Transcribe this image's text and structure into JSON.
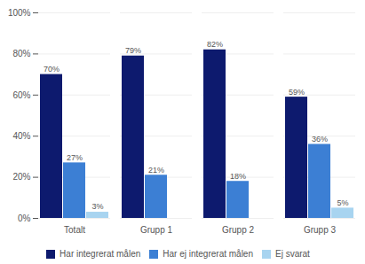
{
  "chart_data": {
    "type": "bar",
    "categories": [
      "Totalt",
      "Grupp 1",
      "Grupp 2",
      "Grupp 3"
    ],
    "series": [
      {
        "name": "Har integrerat målen",
        "color": "#0D1A6E",
        "values": [
          70,
          79,
          82,
          59
        ],
        "value_labels": [
          "70%",
          "79%",
          "82%",
          "59%"
        ]
      },
      {
        "name": "Har ej integrerat målen",
        "color": "#3C7FD4",
        "values": [
          27,
          21,
          18,
          36
        ],
        "value_labels": [
          "27%",
          "21%",
          "18%",
          "36%"
        ]
      },
      {
        "name": "Ej svarat",
        "color": "#A8D4F0",
        "values": [
          3,
          0,
          0,
          5
        ],
        "value_labels": [
          "3%",
          null,
          null,
          "5%"
        ]
      }
    ],
    "ylim": [
      0,
      100
    ],
    "yticks": [
      {
        "value": 0,
        "label": "0%"
      },
      {
        "value": 20,
        "label": "20%"
      },
      {
        "value": 40,
        "label": "40%"
      },
      {
        "value": 60,
        "label": "60%"
      },
      {
        "value": 80,
        "label": "80%"
      },
      {
        "value": 100,
        "label": "100%"
      }
    ],
    "grid": true,
    "legend": "bottom",
    "data_labels": true
  }
}
